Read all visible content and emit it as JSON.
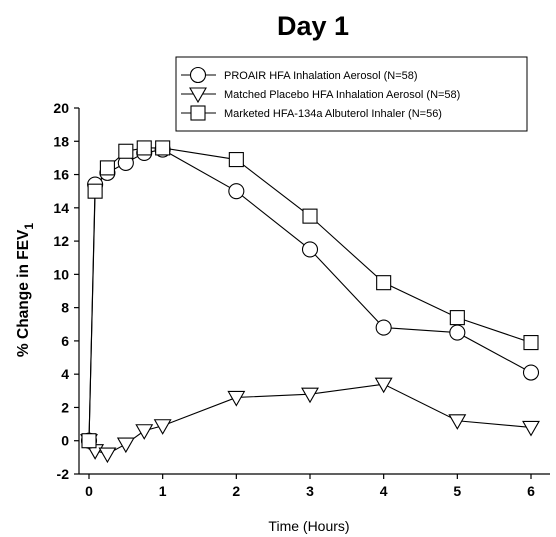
{
  "chart_data": {
    "type": "line",
    "title": "Day 1",
    "xlabel": "Time (Hours)",
    "ylabel_main": "% Change in FEV",
    "ylabel_sub": "1",
    "xlim": [
      0,
      6
    ],
    "ylim": [
      -2,
      20
    ],
    "xticks": [
      "0",
      "1",
      "2",
      "3",
      "4",
      "5",
      "6"
    ],
    "yticks": [
      "-2",
      "0",
      "2",
      "4",
      "6",
      "8",
      "10",
      "12",
      "14",
      "16",
      "18",
      "20"
    ],
    "grid": false,
    "legend_position": "top-right",
    "series": [
      {
        "name": "PROAIR HFA Inhalation Aerosol (N=58)",
        "marker": "circle",
        "x": [
          0,
          0.083,
          0.25,
          0.5,
          0.75,
          1,
          2,
          3,
          4,
          5,
          6
        ],
        "y": [
          0,
          15.4,
          16.1,
          16.7,
          17.3,
          17.5,
          15.0,
          11.5,
          6.8,
          6.5,
          4.1
        ]
      },
      {
        "name": "Matched Placebo HFA Inhalation Aerosol (N=58)",
        "marker": "triangle-down",
        "x": [
          0,
          0.083,
          0.25,
          0.5,
          0.75,
          1,
          2,
          3,
          4,
          5,
          6
        ],
        "y": [
          0,
          -0.6,
          -0.8,
          -0.2,
          0.6,
          0.9,
          2.6,
          2.8,
          3.4,
          1.2,
          0.8
        ]
      },
      {
        "name": "Marketed HFA-134a Albuterol Inhaler (N=56)",
        "marker": "square",
        "x": [
          0,
          0.083,
          0.25,
          0.5,
          0.75,
          1,
          2,
          3,
          4,
          5,
          6
        ],
        "y": [
          0,
          15.0,
          16.4,
          17.4,
          17.6,
          17.6,
          16.9,
          13.5,
          9.5,
          7.4,
          5.9
        ]
      }
    ]
  }
}
